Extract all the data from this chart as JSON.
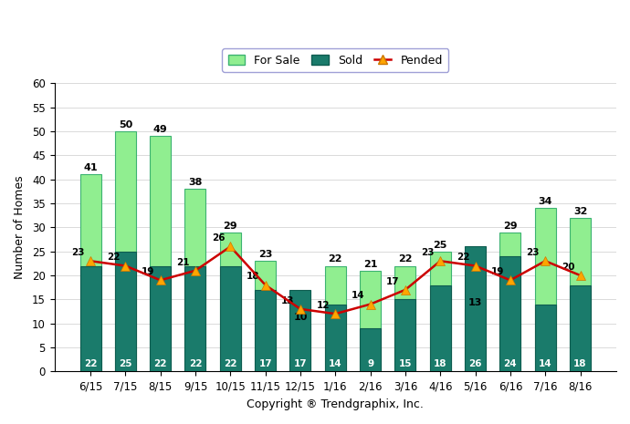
{
  "categories": [
    "6/15",
    "7/15",
    "8/15",
    "9/15",
    "10/15",
    "11/15",
    "12/15",
    "1/16",
    "2/16",
    "3/16",
    "4/16",
    "5/16",
    "6/16",
    "7/16",
    "8/16"
  ],
  "for_sale": [
    41,
    50,
    49,
    38,
    29,
    23,
    10,
    22,
    21,
    22,
    25,
    13,
    29,
    34,
    32
  ],
  "sold": [
    22,
    25,
    22,
    22,
    22,
    17,
    17,
    14,
    9,
    15,
    18,
    26,
    24,
    14,
    18
  ],
  "pended": [
    23,
    22,
    19,
    21,
    26,
    18,
    13,
    12,
    14,
    17,
    23,
    22,
    19,
    23,
    20
  ],
  "for_sale_color": "#90EE90",
  "for_sale_edge_color": "#3cb371",
  "sold_color": "#1a7b6b",
  "sold_edge_color": "#0e5c50",
  "pended_line_color": "#cc0000",
  "pended_marker_color": "#FFA500",
  "pended_marker_edge_color": "#cc7700",
  "ylabel": "Number of Homes",
  "xlabel": "Copyright ® Trendgraphix, Inc.",
  "ylim": [
    0,
    60
  ],
  "yticks": [
    0,
    5,
    10,
    15,
    20,
    25,
    30,
    35,
    40,
    45,
    50,
    55,
    60
  ],
  "bar_width": 0.6,
  "for_sale_label_fontsize": 8,
  "sold_label_fontsize": 7.5,
  "pended_label_fontsize": 7.5,
  "axis_label_fontsize": 9,
  "tick_fontsize": 8.5,
  "background_color": "#ffffff"
}
